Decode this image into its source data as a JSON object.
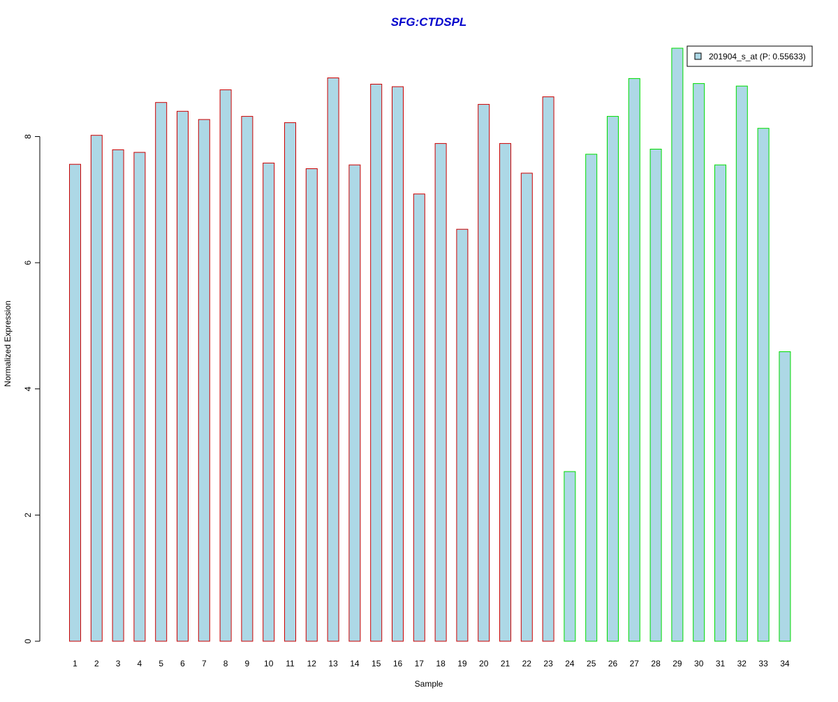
{
  "chart_data": {
    "type": "bar",
    "title": "SFG:CTDSPL",
    "xlabel": "Sample",
    "ylabel": "Normalized Expression",
    "ylim": [
      0,
      9.5
    ],
    "yticks": [
      "0",
      "2",
      "4",
      "6",
      "8"
    ],
    "categories": [
      "1",
      "2",
      "3",
      "4",
      "5",
      "6",
      "7",
      "8",
      "9",
      "10",
      "11",
      "12",
      "13",
      "14",
      "15",
      "16",
      "17",
      "18",
      "19",
      "20",
      "21",
      "22",
      "23",
      "24",
      "25",
      "26",
      "27",
      "28",
      "29",
      "30",
      "31",
      "32",
      "33",
      "34"
    ],
    "values": [
      7.56,
      8.02,
      7.79,
      7.75,
      8.54,
      8.4,
      8.27,
      8.74,
      8.32,
      7.58,
      8.22,
      7.49,
      8.93,
      7.55,
      8.83,
      8.79,
      7.09,
      7.89,
      6.53,
      8.51,
      7.89,
      7.42,
      8.63,
      2.69,
      7.72,
      8.32,
      8.92,
      7.8,
      9.4,
      8.84,
      7.55,
      8.8,
      8.13,
      4.59
    ],
    "bar_border_colors": [
      "#cc0000",
      "#cc0000",
      "#cc0000",
      "#cc0000",
      "#cc0000",
      "#cc0000",
      "#cc0000",
      "#cc0000",
      "#cc0000",
      "#cc0000",
      "#cc0000",
      "#cc0000",
      "#cc0000",
      "#cc0000",
      "#cc0000",
      "#cc0000",
      "#cc0000",
      "#cc0000",
      "#cc0000",
      "#cc0000",
      "#cc0000",
      "#cc0000",
      "#cc0000",
      "#00dd00",
      "#00dd00",
      "#00dd00",
      "#00dd00",
      "#00dd00",
      "#00dd00",
      "#00dd00",
      "#00dd00",
      "#00dd00",
      "#00dd00",
      "#00dd00"
    ],
    "legend": {
      "label": "201904_s_at (P: 0.55633)",
      "position": "top-right"
    },
    "grid": false,
    "colors": {
      "bar_fill": "#add8e6",
      "title": "#0000cc",
      "axis": "#000000"
    }
  }
}
